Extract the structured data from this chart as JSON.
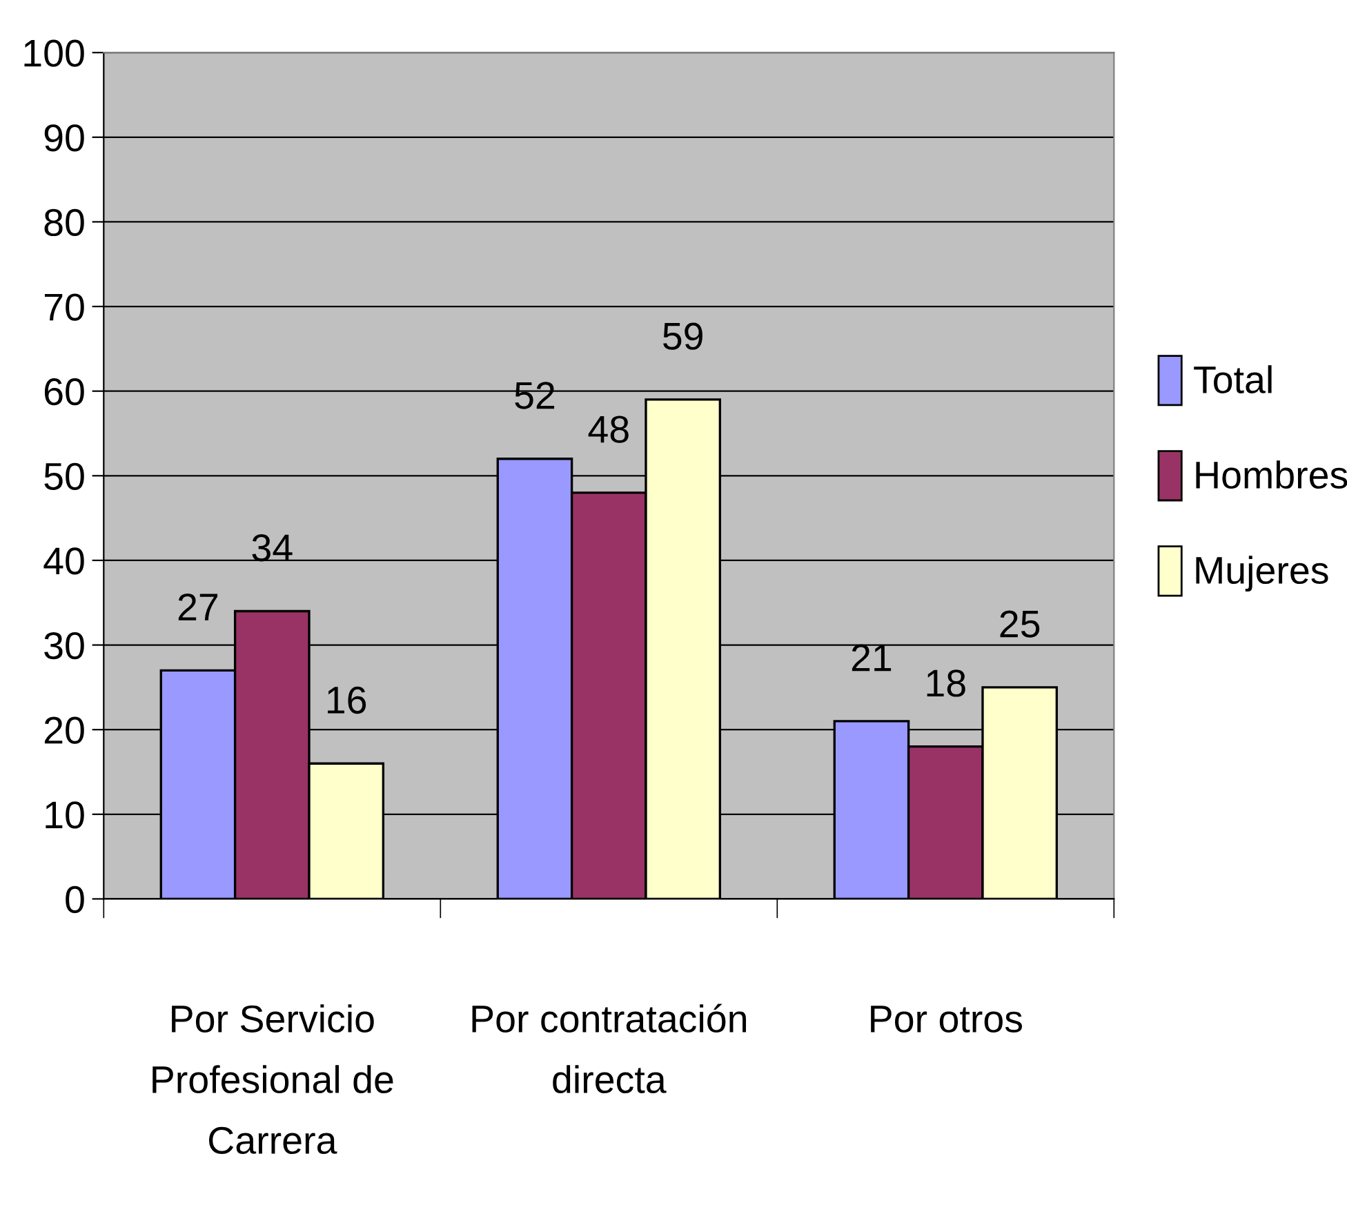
{
  "chart_data": {
    "type": "bar",
    "categories": [
      "Por Servicio\nProfesional de\nCarrera",
      "Por contratación\ndirecta",
      "Por otros"
    ],
    "series": [
      {
        "name": "Total",
        "color": "#9999ff",
        "values": [
          27,
          52,
          21
        ]
      },
      {
        "name": "Hombres",
        "color": "#993366",
        "values": [
          34,
          48,
          18
        ]
      },
      {
        "name": "Mujeres",
        "color": "#ffffcc",
        "values": [
          16,
          59,
          25
        ]
      }
    ],
    "ylim": [
      0,
      100
    ],
    "yticks": [
      0,
      10,
      20,
      30,
      40,
      50,
      60,
      70,
      80,
      90,
      100
    ],
    "grid": "y",
    "legend": "right",
    "data_labels": true
  }
}
